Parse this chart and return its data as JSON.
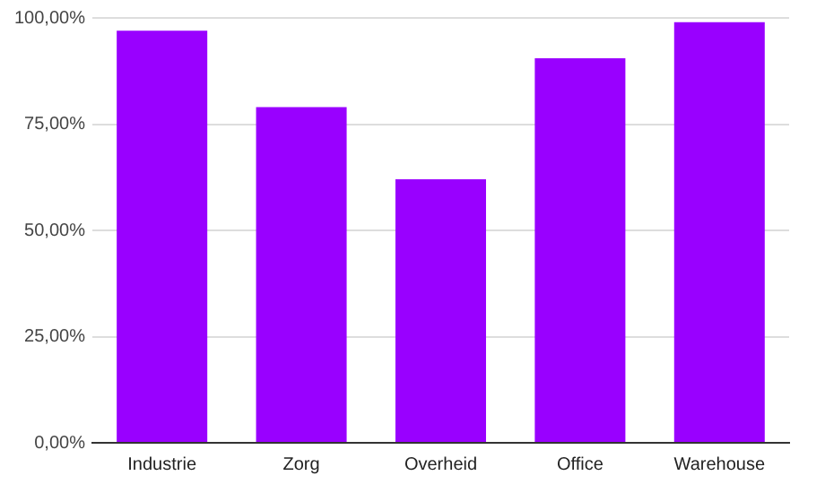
{
  "chart_data": {
    "type": "bar",
    "categories": [
      "Industrie",
      "Zorg",
      "Overheid",
      "Office",
      "Warehouse"
    ],
    "values": [
      97,
      79,
      62,
      90.5,
      99
    ],
    "color": "#9900ff",
    "ylim": [
      0,
      100
    ],
    "yticks": [
      {
        "value": 0,
        "label": "0,00%"
      },
      {
        "value": 25,
        "label": "25,00%"
      },
      {
        "value": 50,
        "label": "50,00%"
      },
      {
        "value": 75,
        "label": "75,00%"
      },
      {
        "value": 100,
        "label": "100,00%"
      }
    ],
    "grid": "y",
    "legend": false
  }
}
